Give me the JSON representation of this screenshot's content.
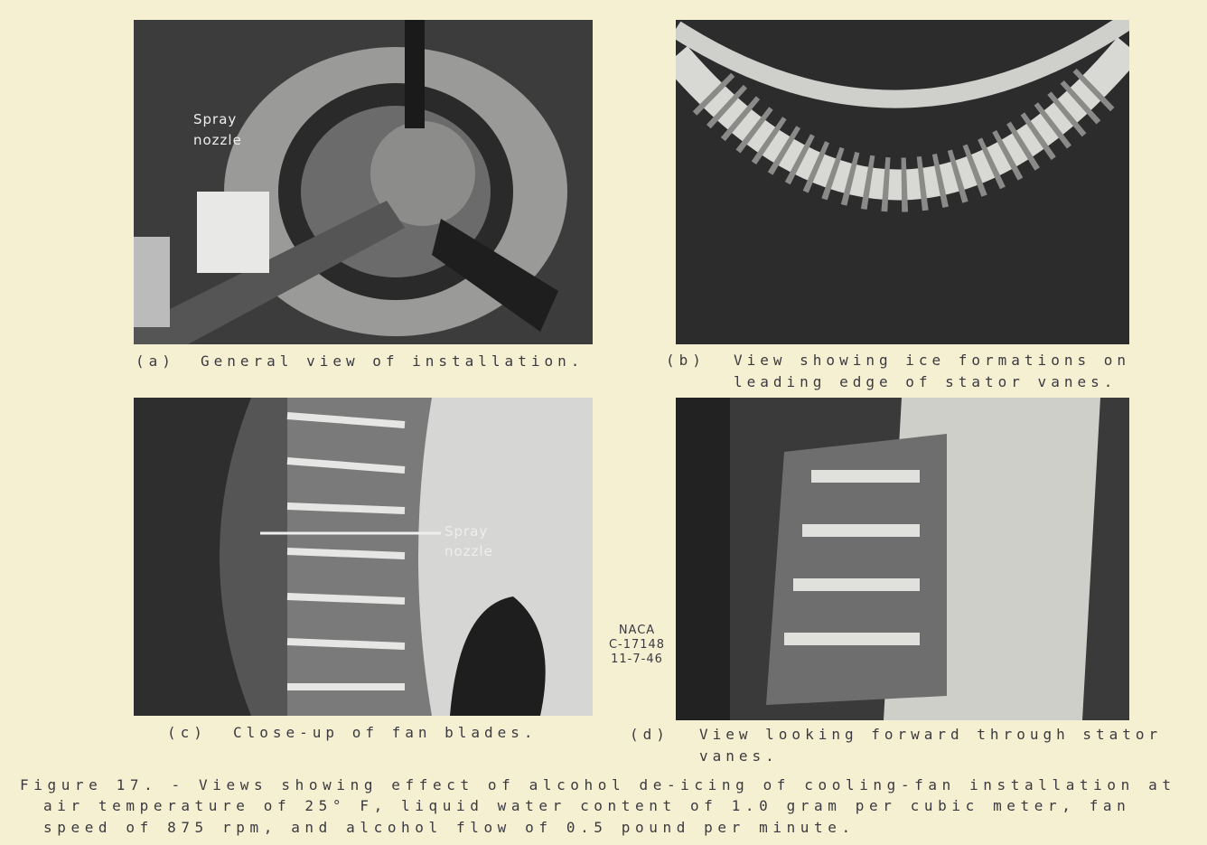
{
  "figure": {
    "panels": [
      {
        "letter": "(a)",
        "caption": [
          "General view of installation."
        ],
        "labels": [
          "Spray",
          "nozzle"
        ]
      },
      {
        "letter": "(b)",
        "caption": [
          "View showing ice formations on",
          "leading edge of stator vanes."
        ]
      },
      {
        "letter": "(c)",
        "caption": [
          "Close-up of fan blades."
        ],
        "labels": [
          "Spray",
          "nozzle"
        ]
      },
      {
        "letter": "(d)",
        "caption": [
          "View looking forward through stator",
          "vanes."
        ]
      }
    ],
    "stamp": [
      "NACA",
      "C-17148",
      "11-7-46"
    ],
    "caption": [
      "Figure 17. - Views showing effect of alcohol de-icing of cooling-fan installation at",
      "air temperature of 25° F, liquid water content of 1.0 gram per cubic meter, fan",
      "speed of 875 rpm, and alcohol flow of 0.5 pound per minute."
    ]
  }
}
